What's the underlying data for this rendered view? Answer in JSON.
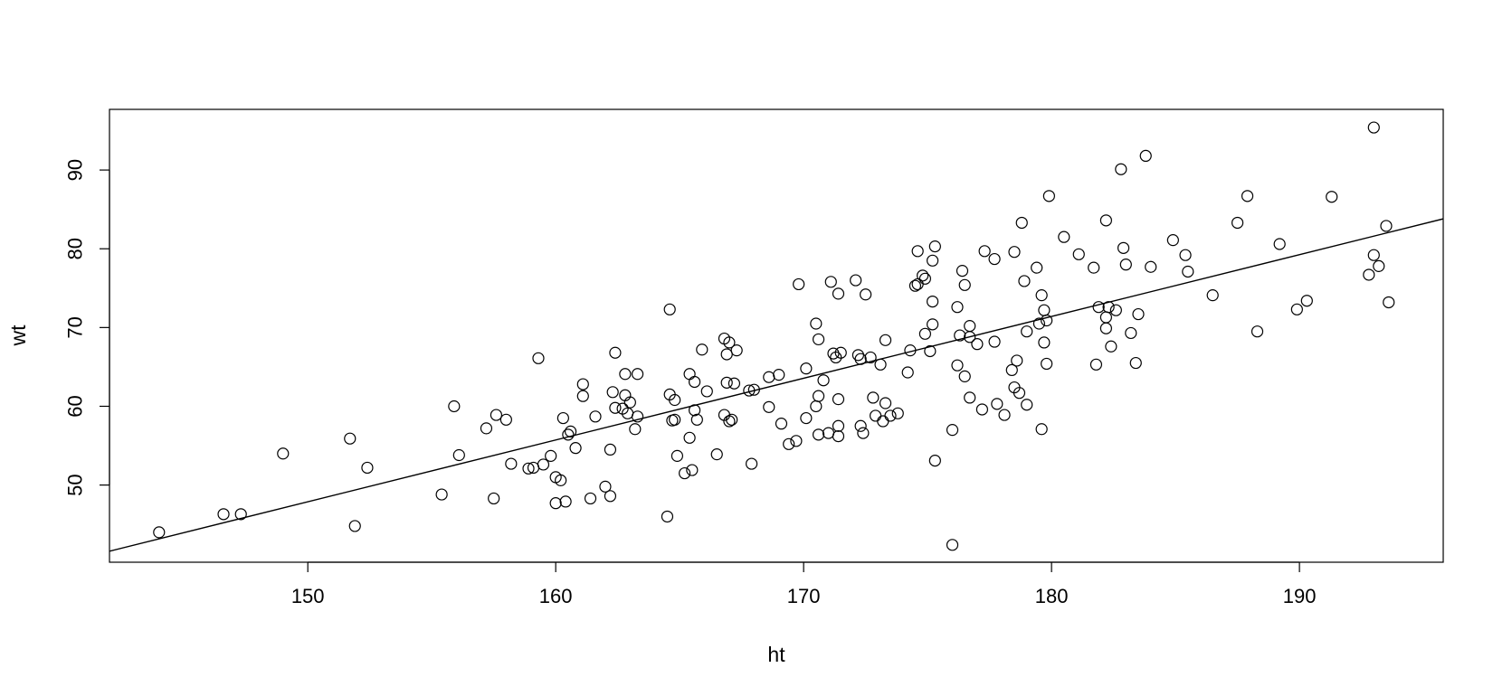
{
  "chart_data": {
    "type": "scatter",
    "title": "",
    "xlabel": "ht",
    "ylabel": "wt",
    "xlim": [
      142,
      195.8
    ],
    "ylim": [
      40.2,
      97.7
    ],
    "xticks": [
      150,
      160,
      170,
      180,
      190
    ],
    "yticks": [
      50,
      60,
      70,
      80,
      90
    ],
    "grid": false,
    "legend": "none",
    "marker": "open-circle",
    "fit_line": {
      "from": [
        142,
        41.6
      ],
      "to": [
        195.8,
        83.8
      ]
    },
    "points": [
      [
        144.0,
        44.0
      ],
      [
        146.6,
        46.3
      ],
      [
        147.3,
        46.3
      ],
      [
        149.0,
        54.0
      ],
      [
        151.7,
        55.9
      ],
      [
        151.9,
        44.8
      ],
      [
        152.4,
        52.2
      ],
      [
        155.4,
        48.8
      ],
      [
        155.9,
        60.0
      ],
      [
        156.1,
        53.8
      ],
      [
        157.2,
        57.2
      ],
      [
        157.5,
        48.3
      ],
      [
        157.6,
        58.9
      ],
      [
        158.0,
        58.3
      ],
      [
        158.2,
        52.7
      ],
      [
        158.9,
        52.1
      ],
      [
        159.1,
        52.2
      ],
      [
        159.3,
        66.1
      ],
      [
        159.5,
        52.6
      ],
      [
        159.8,
        53.7
      ],
      [
        160.0,
        47.7
      ],
      [
        160.0,
        51.0
      ],
      [
        160.2,
        50.6
      ],
      [
        160.3,
        58.5
      ],
      [
        160.4,
        47.9
      ],
      [
        160.5,
        56.4
      ],
      [
        160.6,
        56.8
      ],
      [
        160.8,
        54.7
      ],
      [
        161.1,
        62.8
      ],
      [
        161.1,
        61.3
      ],
      [
        161.4,
        48.3
      ],
      [
        161.6,
        58.7
      ],
      [
        162.0,
        49.8
      ],
      [
        162.2,
        54.5
      ],
      [
        162.2,
        48.6
      ],
      [
        162.3,
        61.8
      ],
      [
        162.4,
        59.8
      ],
      [
        162.4,
        66.8
      ],
      [
        162.7,
        59.7
      ],
      [
        162.8,
        64.1
      ],
      [
        162.8,
        61.4
      ],
      [
        162.9,
        59.1
      ],
      [
        163.0,
        60.5
      ],
      [
        163.2,
        57.1
      ],
      [
        163.3,
        58.7
      ],
      [
        163.3,
        64.1
      ],
      [
        164.5,
        46.0
      ],
      [
        164.6,
        72.3
      ],
      [
        164.6,
        61.5
      ],
      [
        164.7,
        58.2
      ],
      [
        164.8,
        60.8
      ],
      [
        164.8,
        58.3
      ],
      [
        164.9,
        53.7
      ],
      [
        165.2,
        51.5
      ],
      [
        165.4,
        56.0
      ],
      [
        165.4,
        64.1
      ],
      [
        165.5,
        51.9
      ],
      [
        165.6,
        59.5
      ],
      [
        165.6,
        63.1
      ],
      [
        165.7,
        58.3
      ],
      [
        165.9,
        67.2
      ],
      [
        166.1,
        61.9
      ],
      [
        166.5,
        53.9
      ],
      [
        166.8,
        58.9
      ],
      [
        166.8,
        68.6
      ],
      [
        166.9,
        63.0
      ],
      [
        166.9,
        66.6
      ],
      [
        167.0,
        68.1
      ],
      [
        167.0,
        58.1
      ],
      [
        167.1,
        58.3
      ],
      [
        167.2,
        62.9
      ],
      [
        167.3,
        67.1
      ],
      [
        167.8,
        62.0
      ],
      [
        167.9,
        52.7
      ],
      [
        168.0,
        62.1
      ],
      [
        168.6,
        59.9
      ],
      [
        168.6,
        63.7
      ],
      [
        169.0,
        64.0
      ],
      [
        169.1,
        57.8
      ],
      [
        169.4,
        55.2
      ],
      [
        169.7,
        55.6
      ],
      [
        169.8,
        75.5
      ],
      [
        170.1,
        58.5
      ],
      [
        170.1,
        64.8
      ],
      [
        170.5,
        70.5
      ],
      [
        170.5,
        60.0
      ],
      [
        170.6,
        68.5
      ],
      [
        170.6,
        61.3
      ],
      [
        170.6,
        56.4
      ],
      [
        170.8,
        63.3
      ],
      [
        171.0,
        56.6
      ],
      [
        171.1,
        75.8
      ],
      [
        171.2,
        66.7
      ],
      [
        171.3,
        66.2
      ],
      [
        171.4,
        74.3
      ],
      [
        171.4,
        60.9
      ],
      [
        171.4,
        57.5
      ],
      [
        171.4,
        56.2
      ],
      [
        171.5,
        66.8
      ],
      [
        172.1,
        76.0
      ],
      [
        172.2,
        66.5
      ],
      [
        172.3,
        57.5
      ],
      [
        172.3,
        66.0
      ],
      [
        172.4,
        56.6
      ],
      [
        172.5,
        74.2
      ],
      [
        172.7,
        66.2
      ],
      [
        172.8,
        61.1
      ],
      [
        172.9,
        58.8
      ],
      [
        173.1,
        65.3
      ],
      [
        173.2,
        58.1
      ],
      [
        173.3,
        68.4
      ],
      [
        173.3,
        60.4
      ],
      [
        173.5,
        58.8
      ],
      [
        173.8,
        59.1
      ],
      [
        174.2,
        64.3
      ],
      [
        174.3,
        67.1
      ],
      [
        174.5,
        75.3
      ],
      [
        174.6,
        79.7
      ],
      [
        174.6,
        75.5
      ],
      [
        174.8,
        76.6
      ],
      [
        174.9,
        76.2
      ],
      [
        174.9,
        69.2
      ],
      [
        175.1,
        67.0
      ],
      [
        175.2,
        70.4
      ],
      [
        175.2,
        73.3
      ],
      [
        175.2,
        78.5
      ],
      [
        175.3,
        80.3
      ],
      [
        175.3,
        53.1
      ],
      [
        176.0,
        42.4
      ],
      [
        176.0,
        57.0
      ],
      [
        176.2,
        65.2
      ],
      [
        176.2,
        72.6
      ],
      [
        176.3,
        69.0
      ],
      [
        176.4,
        77.2
      ],
      [
        176.5,
        75.4
      ],
      [
        176.5,
        63.8
      ],
      [
        176.7,
        61.1
      ],
      [
        176.7,
        70.2
      ],
      [
        176.7,
        68.8
      ],
      [
        177.0,
        67.9
      ],
      [
        177.2,
        59.6
      ],
      [
        177.3,
        79.7
      ],
      [
        177.7,
        78.7
      ],
      [
        177.7,
        68.2
      ],
      [
        177.8,
        60.3
      ],
      [
        178.1,
        58.9
      ],
      [
        178.4,
        64.6
      ],
      [
        178.5,
        79.6
      ],
      [
        178.5,
        62.4
      ],
      [
        178.6,
        65.8
      ],
      [
        178.7,
        61.7
      ],
      [
        178.8,
        83.3
      ],
      [
        178.9,
        75.9
      ],
      [
        179.0,
        69.5
      ],
      [
        179.0,
        60.2
      ],
      [
        179.4,
        77.6
      ],
      [
        179.5,
        70.5
      ],
      [
        179.6,
        74.1
      ],
      [
        179.6,
        57.1
      ],
      [
        179.7,
        72.2
      ],
      [
        179.7,
        68.1
      ],
      [
        179.8,
        65.4
      ],
      [
        179.8,
        70.9
      ],
      [
        179.9,
        86.7
      ],
      [
        180.5,
        81.5
      ],
      [
        181.1,
        79.3
      ],
      [
        181.7,
        77.6
      ],
      [
        181.8,
        65.3
      ],
      [
        181.9,
        72.6
      ],
      [
        182.2,
        69.9
      ],
      [
        182.2,
        71.3
      ],
      [
        182.2,
        83.6
      ],
      [
        182.3,
        72.6
      ],
      [
        182.4,
        67.6
      ],
      [
        182.6,
        72.2
      ],
      [
        182.8,
        90.1
      ],
      [
        182.9,
        80.1
      ],
      [
        183.0,
        78.0
      ],
      [
        183.2,
        69.3
      ],
      [
        183.4,
        65.5
      ],
      [
        183.5,
        71.7
      ],
      [
        183.8,
        91.8
      ],
      [
        184.0,
        77.7
      ],
      [
        184.9,
        81.1
      ],
      [
        185.4,
        79.2
      ],
      [
        185.5,
        77.1
      ],
      [
        186.5,
        74.1
      ],
      [
        187.5,
        83.3
      ],
      [
        187.9,
        86.7
      ],
      [
        188.3,
        69.5
      ],
      [
        189.2,
        80.6
      ],
      [
        189.9,
        72.3
      ],
      [
        190.3,
        73.4
      ],
      [
        191.3,
        86.6
      ],
      [
        192.8,
        76.7
      ],
      [
        193.0,
        95.4
      ],
      [
        193.0,
        79.2
      ],
      [
        193.2,
        77.8
      ],
      [
        193.5,
        82.9
      ],
      [
        193.6,
        73.2
      ]
    ]
  }
}
